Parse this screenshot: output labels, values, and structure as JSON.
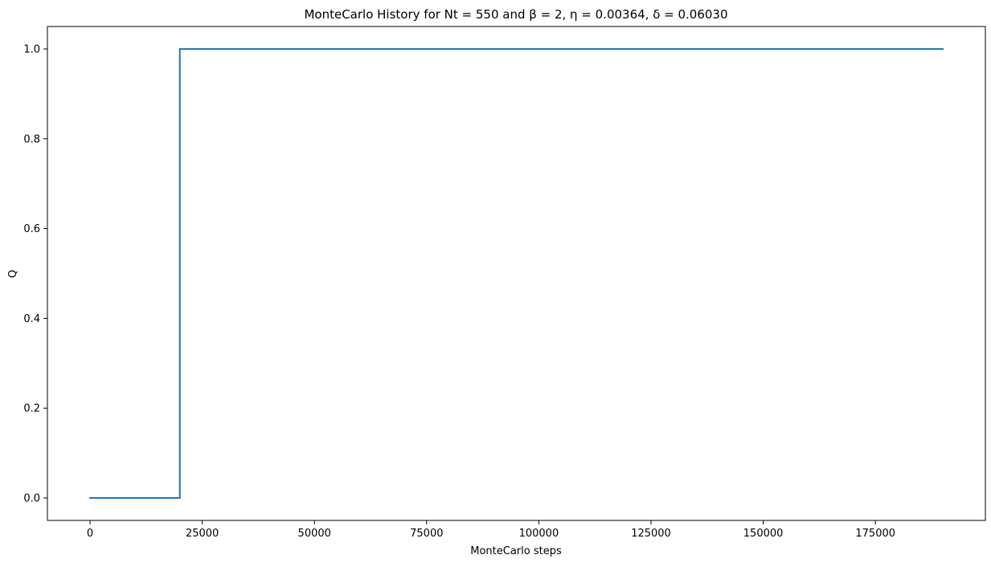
{
  "chart_data": {
    "type": "line",
    "title": "MonteCarlo History for Nt = 550 and  β = 2, η = 0.00364, δ = 0.06030",
    "xlabel": "MonteCarlo steps",
    "ylabel": "Q",
    "xlim": [
      -9500,
      199500
    ],
    "ylim": [
      -0.05,
      1.05
    ],
    "xticks": [
      0,
      25000,
      50000,
      75000,
      100000,
      125000,
      150000,
      175000
    ],
    "xtick_labels": [
      "0",
      "25000",
      "50000",
      "75000",
      "100000",
      "125000",
      "150000",
      "175000"
    ],
    "yticks": [
      0.0,
      0.2,
      0.4,
      0.6,
      0.8,
      1.0
    ],
    "ytick_labels": [
      "0.0",
      "0.2",
      "0.4",
      "0.6",
      "0.8",
      "1.0"
    ],
    "grid": false,
    "series": [
      {
        "color": "#1f77b4",
        "x": [
          0,
          20000,
          20000,
          190000
        ],
        "y": [
          0,
          0,
          1,
          1
        ]
      }
    ]
  }
}
